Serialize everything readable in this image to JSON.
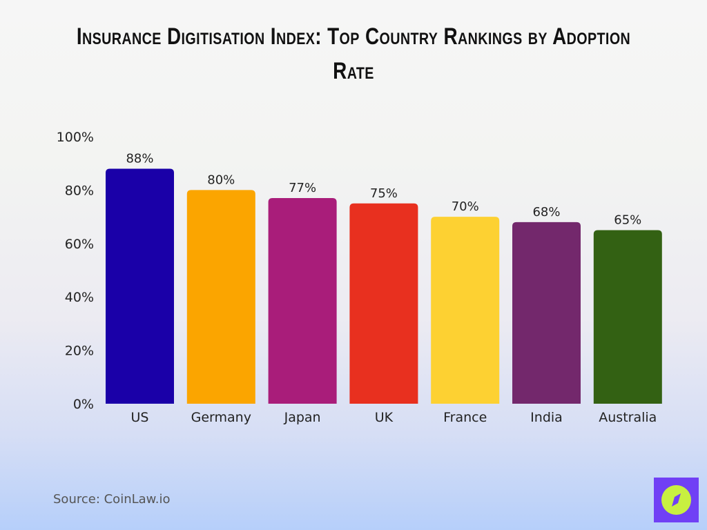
{
  "chart_data": {
    "type": "bar",
    "title": "Insurance Digitisation Index: Top Country Rankings by Adoption Rate",
    "categories": [
      "US",
      "Germany",
      "Japan",
      "UK",
      "France",
      "India",
      "Australia"
    ],
    "values": [
      88,
      80,
      77,
      75,
      70,
      68,
      65
    ],
    "data_labels": [
      "88%",
      "80%",
      "77%",
      "75%",
      "70%",
      "68%",
      "65%"
    ],
    "colors": [
      "#1a00a8",
      "#fba500",
      "#a91d7a",
      "#e8301f",
      "#fdd132",
      "#73286c",
      "#336113"
    ],
    "ylim": [
      0,
      100
    ],
    "yticks": [
      0,
      20,
      40,
      60,
      80,
      100
    ],
    "ytick_labels": [
      "0%",
      "20%",
      "40%",
      "60%",
      "80%",
      "100%"
    ],
    "grid": false,
    "xlabel": "",
    "ylabel": ""
  },
  "source": "Source: CoinLaw.io",
  "logo": {
    "icon": "compass-icon",
    "colors": [
      "#7040f5",
      "#c8f040"
    ]
  }
}
